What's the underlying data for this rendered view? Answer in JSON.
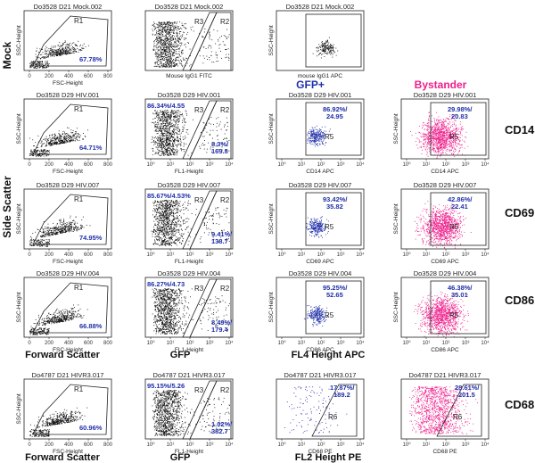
{
  "labels": {
    "mock": "Mock",
    "side_scatter": "Side Scatter",
    "gfp_plus": "GFP+",
    "bystander": "Bystander",
    "cd14": "CD14",
    "cd69": "CD69",
    "cd86": "CD86",
    "cd68": "CD68",
    "forward_scatter_1": "Forward Scatter",
    "gfp_1": "GFP",
    "fl4": "FL4 Height APC",
    "forward_scatter_2": "Forward Scatter",
    "gfp_2": "GFP",
    "fl2": "FL2 Height PE"
  },
  "colors": {
    "black": "#111111",
    "blue": "#1f2fa8",
    "magenta": "#ee1f8c",
    "stat": "#1f2fa8"
  },
  "chart_data": [
    {
      "id": "r0c0",
      "type": "scatter",
      "title": "Do3528 D21 Mock.002",
      "xlabel": "FSC-Height",
      "ylabel": "SSC-Height",
      "scale": "linear",
      "x_ticks": [
        "0",
        "200",
        "400",
        "600",
        "800"
      ],
      "y_ticks": [],
      "color": "black",
      "gate": "R1",
      "gate_shape": "polygon",
      "stats": [
        "67.78%"
      ]
    },
    {
      "id": "r0c1",
      "type": "scatter",
      "title": "Do3528 D21 Mock.002",
      "xlabel": "Mouse IgG1 FITC",
      "ylabel": "",
      "scale": "log",
      "x_ticks": [],
      "y_ticks": [],
      "color": "black",
      "gates": [
        "R3",
        "R2"
      ],
      "gate_shape": "band",
      "stats": []
    },
    {
      "id": "r0c2",
      "type": "scatter",
      "title": "Do3528 D21 Mock.002",
      "xlabel": "mouse IgG1 APC",
      "ylabel": "SSC-Height",
      "scale": "log",
      "x_ticks": [],
      "y_ticks": [],
      "color": "black",
      "gate": "R5",
      "gate_shape": "rect",
      "stats": []
    },
    {
      "id": "r1c0",
      "type": "scatter",
      "title": "Do3528 D29 HIV.001",
      "xlabel": "FSC-Height",
      "ylabel": "SSC-Height",
      "scale": "linear",
      "x_ticks": [
        "0",
        "200",
        "400",
        "600",
        "800"
      ],
      "y_ticks": [],
      "color": "black",
      "gate": "R1",
      "gate_shape": "polygon",
      "stats": [
        "64.71%"
      ]
    },
    {
      "id": "r1c1",
      "type": "scatter",
      "title": "Do3528 D29 HIV.001",
      "xlabel": "FL1-Height",
      "ylabel": "",
      "scale": "log",
      "x_ticks": [
        "10⁰",
        "10¹",
        "10²",
        "10³",
        "10⁴"
      ],
      "y_ticks": [],
      "color": "black",
      "gates": [
        "R3",
        "R2"
      ],
      "gate_shape": "band",
      "stats": [
        "86.34%/4.55",
        "8.3%/",
        "169.8"
      ]
    },
    {
      "id": "r1c2",
      "type": "scatter",
      "title": "Do3528 D29 HIV.001",
      "xlabel": "CD14 APC",
      "ylabel": "SSC-Height",
      "scale": "log",
      "x_ticks": [
        "10⁰",
        "10¹",
        "10²",
        "10³",
        "10⁴"
      ],
      "y_ticks": [],
      "color": "blue",
      "gate": "R5",
      "gate_shape": "rect",
      "stats": [
        "86.92%/",
        "24.95"
      ]
    },
    {
      "id": "r1c3",
      "type": "scatter",
      "title": "Do3528 D29 HIV.001",
      "xlabel": "CD14 APC",
      "ylabel": "SSC-Height",
      "scale": "log",
      "x_ticks": [
        "10⁰",
        "10¹",
        "10²",
        "10³",
        "10⁴"
      ],
      "y_ticks": [],
      "color": "magenta",
      "gate": "R5",
      "gate_shape": "rect",
      "stats": [
        "29.98%/",
        "20.83"
      ]
    },
    {
      "id": "r2c0",
      "type": "scatter",
      "title": "Do3528 D29 HIV.007",
      "xlabel": "FSC-Height",
      "ylabel": "SSC-Height",
      "scale": "linear",
      "x_ticks": [
        "0",
        "200",
        "400",
        "600",
        "800"
      ],
      "y_ticks": [],
      "color": "black",
      "gate": "R1",
      "gate_shape": "polygon",
      "stats": [
        "74.95%"
      ]
    },
    {
      "id": "r2c1",
      "type": "scatter",
      "title": "Do3528 D29 HIV.007",
      "xlabel": "FL1-Height",
      "ylabel": "",
      "scale": "log",
      "x_ticks": [
        "10⁰",
        "10¹",
        "10²",
        "10³",
        "10⁴"
      ],
      "y_ticks": [],
      "color": "black",
      "gates": [
        "R3",
        "R2"
      ],
      "gate_shape": "band",
      "stats": [
        "85.67%/4.53%",
        "9.41%/",
        "138.7"
      ]
    },
    {
      "id": "r2c2",
      "type": "scatter",
      "title": "Do3528 D29 HIV.007",
      "xlabel": "CD69 APC",
      "ylabel": "SSC-Height",
      "scale": "log",
      "x_ticks": [
        "10⁰",
        "10¹",
        "10²",
        "10³",
        "10⁴"
      ],
      "y_ticks": [],
      "color": "blue",
      "gate": "R5",
      "gate_shape": "rect",
      "stats": [
        "93.42%/",
        "35.82"
      ]
    },
    {
      "id": "r2c3",
      "type": "scatter",
      "title": "Do3528 D29 HIV.007",
      "xlabel": "CD69 APC",
      "ylabel": "SSC-Height",
      "scale": "log",
      "x_ticks": [
        "10⁰",
        "10¹",
        "10²",
        "10³",
        "10⁴"
      ],
      "y_ticks": [],
      "color": "magenta",
      "gate": "R5",
      "gate_shape": "rect",
      "stats": [
        "42.86%/",
        "22.41"
      ]
    },
    {
      "id": "r3c0",
      "type": "scatter",
      "title": "Do3528 D29 HIV.004",
      "xlabel": "FSC-Height",
      "ylabel": "SSC-Height",
      "scale": "linear",
      "x_ticks": [
        "0",
        "200",
        "400",
        "600",
        "800"
      ],
      "y_ticks": [],
      "color": "black",
      "gate": "R1",
      "gate_shape": "polygon",
      "stats": [
        "66.88%"
      ]
    },
    {
      "id": "r3c1",
      "type": "scatter",
      "title": "Do3528 D29 HIV.004",
      "xlabel": "FL1-Height",
      "ylabel": "",
      "scale": "log",
      "x_ticks": [
        "10⁰",
        "10¹",
        "10²",
        "10³",
        "10⁴"
      ],
      "y_ticks": [],
      "color": "black",
      "gates": [
        "R3",
        "R2"
      ],
      "gate_shape": "band",
      "stats": [
        "86.27%/4.73",
        "8.49%/",
        "179.4"
      ]
    },
    {
      "id": "r3c2",
      "type": "scatter",
      "title": "Do3528 D29 HIV.004",
      "xlabel": "CD86 APC",
      "ylabel": "SSC-Height",
      "scale": "log",
      "x_ticks": [
        "10⁰",
        "10¹",
        "10²",
        "10³",
        "10⁴"
      ],
      "y_ticks": [],
      "color": "blue",
      "gate": "R5",
      "gate_shape": "rect",
      "stats": [
        "95.25%/",
        "52.65"
      ]
    },
    {
      "id": "r3c3",
      "type": "scatter",
      "title": "Do3528 D29 HIV.004",
      "xlabel": "CD86 APC",
      "ylabel": "SSC-Height",
      "scale": "log",
      "x_ticks": [
        "10⁰",
        "10¹",
        "10²",
        "10³",
        "10⁴"
      ],
      "y_ticks": [],
      "color": "magenta",
      "gate": "R5",
      "gate_shape": "rect",
      "stats": [
        "46.38%/",
        "35.01"
      ]
    },
    {
      "id": "r4c0",
      "type": "scatter",
      "title": "Do4787 D21 HIVR3.017",
      "xlabel": "FSC-Height",
      "ylabel": "SSC-Height",
      "scale": "linear",
      "x_ticks": [
        "0",
        "200",
        "400",
        "600",
        "800"
      ],
      "y_ticks": [],
      "color": "black",
      "gate": "R1",
      "gate_shape": "polygon",
      "stats": [
        "60.96%"
      ]
    },
    {
      "id": "r4c1",
      "type": "scatter",
      "title": "Do4787 D21 HIVR3.017",
      "xlabel": "FL1-Height",
      "ylabel": "",
      "scale": "log",
      "x_ticks": [
        "10⁰",
        "10¹",
        "10²",
        "10³",
        "10⁴"
      ],
      "y_ticks": [],
      "color": "black",
      "gates": [
        "R3",
        "R2"
      ],
      "gate_shape": "band",
      "stats": [
        "95.15%/5.26",
        "1.02%/",
        "382.7"
      ]
    },
    {
      "id": "r4c2",
      "type": "scatter",
      "title": "Do4787 D21 HIVR3.017",
      "xlabel": "CD68 PE",
      "ylabel": "",
      "scale": "log",
      "x_ticks": [
        "10⁰",
        "10¹",
        "10²",
        "10³",
        "10⁴"
      ],
      "y_ticks": [],
      "color": "blue",
      "gate": "R6",
      "gate_shape": "trapezoid",
      "stats": [
        "17.87%/",
        "189.2"
      ]
    },
    {
      "id": "r4c3",
      "type": "scatter",
      "title": "Do4787 D21 HIVR3.017",
      "xlabel": "CD68 PE",
      "ylabel": "",
      "scale": "log",
      "x_ticks": [
        "10⁰",
        "10¹",
        "10²",
        "10³",
        "10⁴"
      ],
      "y_ticks": [],
      "color": "magenta",
      "gate": "R6",
      "gate_shape": "trapezoid",
      "stats": [
        "28.61%/",
        "201.5"
      ]
    }
  ]
}
